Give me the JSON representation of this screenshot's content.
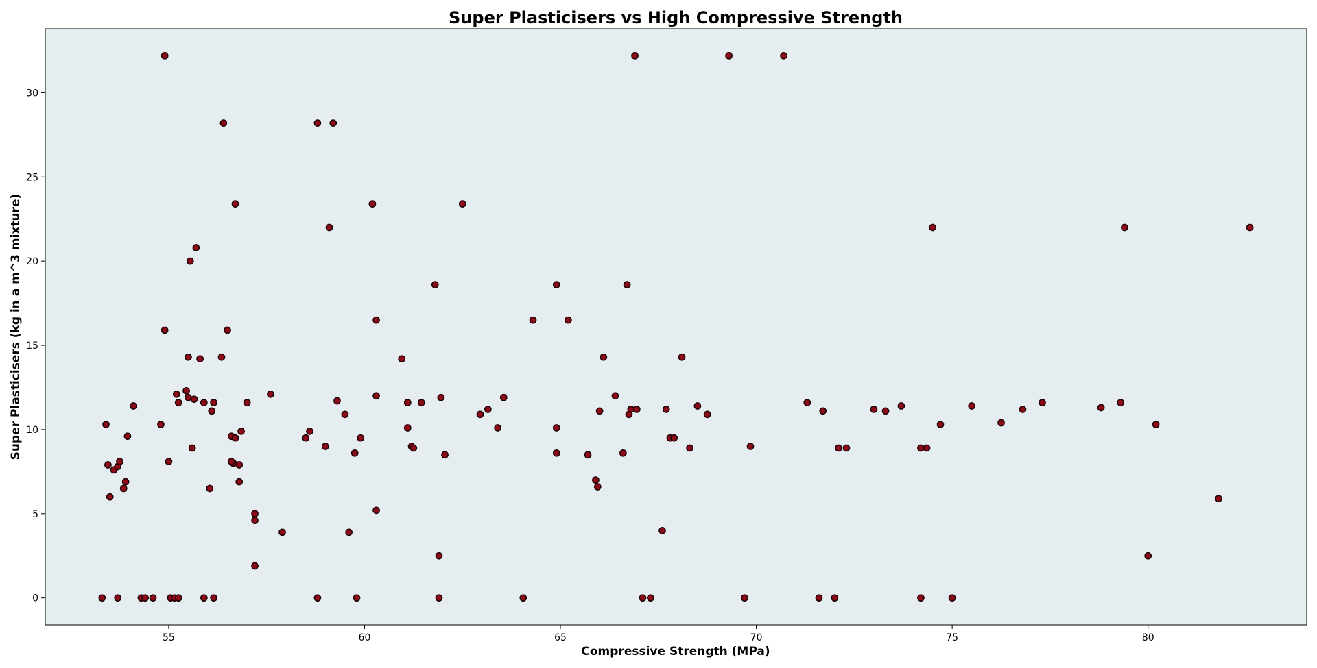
{
  "chart_data": {
    "type": "scatter",
    "title": "Super Plasticisers vs High Compressive Strength",
    "xlabel": "Compressive Strength (MPa)",
    "ylabel": "Super Plasticisers (kg in a m^3 mixture)",
    "xlim": [
      51.85,
      84.05
    ],
    "ylim": [
      -1.6,
      33.8
    ],
    "xticks": [
      55,
      60,
      65,
      70,
      75,
      80
    ],
    "yticks": [
      0,
      5,
      10,
      15,
      20,
      25,
      30
    ],
    "grid": false,
    "legend": "none",
    "colors": {
      "plot_background": "#e5edf1",
      "marker_fill": "#8b0a1a",
      "marker_edge": "#1a0000"
    },
    "series": [
      {
        "x": [
          53.3,
          53.7,
          54.3,
          54.4,
          54.6,
          55.05,
          55.15,
          55.25,
          55.9,
          56.15,
          58.8,
          59.8,
          61.9,
          64.05,
          67.1,
          67.3,
          69.7,
          71.6,
          72.0,
          74.2,
          75.0,
          54.9,
          66.9,
          69.3,
          70.7,
          56.4,
          58.8,
          59.2,
          56.7,
          60.2,
          62.5,
          59.1,
          74.5,
          79.4,
          82.6,
          55.7,
          55.55,
          61.8,
          64.9,
          66.7,
          54.9,
          56.5,
          60.3,
          64.3,
          65.2,
          55.5,
          56.35,
          55.8,
          60.95,
          66.1,
          68.1,
          53.4,
          53.45,
          53.5,
          53.6,
          53.7,
          53.75,
          53.85,
          53.9,
          53.95,
          54.1,
          54.8,
          55.0,
          55.2,
          55.25,
          55.45,
          55.5,
          55.65,
          55.6,
          55.9,
          56.05,
          56.1,
          56.15,
          56.6,
          56.65,
          56.6,
          56.7,
          56.8,
          56.85,
          56.8,
          57.0,
          57.2,
          57.2,
          57.2,
          57.6,
          57.9,
          58.5,
          58.6,
          59.0,
          59.3,
          59.5,
          59.6,
          59.75,
          59.9,
          60.3,
          60.3,
          61.1,
          61.1,
          61.2,
          61.25,
          61.45,
          61.9,
          61.95,
          62.05,
          62.95,
          63.15,
          63.4,
          63.55,
          64.9,
          64.9,
          65.7,
          65.9,
          65.95,
          66.0,
          66.4,
          66.6,
          66.75,
          66.8,
          66.95,
          67.6,
          67.7,
          67.8,
          67.9,
          68.3,
          68.5,
          68.75,
          69.85,
          71.3,
          71.7,
          72.1,
          72.3,
          73.0,
          73.3,
          73.7,
          74.2,
          74.35,
          74.7,
          75.5,
          76.25,
          76.8,
          77.3,
          78.8,
          79.3,
          80.0,
          80.2,
          81.8
        ],
        "y": [
          0,
          0,
          0,
          0,
          0,
          0,
          0,
          0,
          0,
          0,
          0,
          0,
          0,
          0,
          0,
          0,
          0,
          0,
          0,
          0,
          0,
          32.2,
          32.2,
          32.2,
          32.2,
          28.2,
          28.2,
          28.2,
          23.4,
          23.4,
          23.4,
          22.0,
          22.0,
          22.0,
          22.0,
          20.8,
          20.0,
          18.6,
          18.6,
          18.6,
          15.9,
          15.9,
          16.5,
          16.5,
          16.5,
          14.3,
          14.3,
          14.2,
          14.2,
          14.3,
          14.3,
          10.3,
          7.9,
          6.0,
          7.6,
          7.8,
          8.1,
          6.5,
          6.9,
          9.6,
          11.4,
          10.3,
          8.1,
          12.1,
          11.6,
          12.3,
          11.9,
          11.8,
          8.9,
          11.6,
          6.5,
          11.1,
          11.6,
          9.6,
          8.0,
          8.1,
          9.5,
          7.9,
          9.9,
          6.9,
          11.6,
          5.0,
          4.6,
          1.9,
          12.1,
          3.9,
          9.5,
          9.9,
          9.0,
          11.7,
          10.9,
          3.9,
          8.6,
          9.5,
          12.0,
          5.2,
          11.6,
          10.1,
          9.0,
          8.9,
          11.6,
          2.5,
          11.9,
          8.5,
          10.9,
          11.2,
          10.1,
          11.9,
          10.1,
          8.6,
          8.5,
          7.0,
          6.6,
          11.1,
          12.0,
          8.6,
          10.9,
          11.2,
          11.2,
          4.0,
          11.2,
          9.5,
          9.5,
          8.9,
          11.4,
          10.9,
          9.0,
          11.6,
          11.1,
          8.9,
          8.9,
          11.2,
          11.1,
          11.4,
          8.9,
          8.9,
          10.3,
          11.4,
          10.4,
          11.2,
          11.6,
          11.3,
          11.6,
          2.5,
          10.3,
          5.9
        ]
      }
    ]
  }
}
